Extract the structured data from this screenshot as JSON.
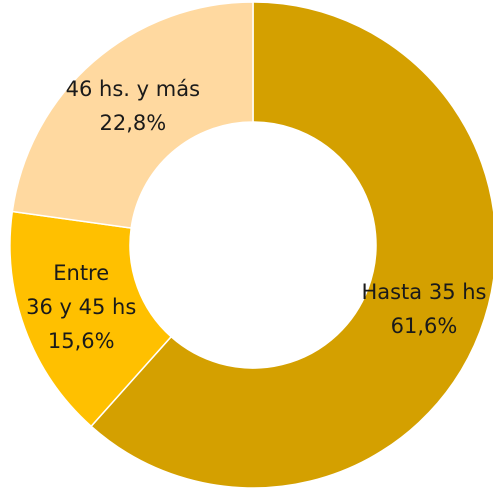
{
  "chart_data": {
    "type": "donut",
    "categories": [
      [
        "Hasta 35 hs"
      ],
      [
        "Entre",
        "36 y 45 hs"
      ],
      [
        "46 hs. y más"
      ]
    ],
    "values": [
      61.6,
      15.6,
      22.8
    ],
    "value_labels": [
      "61,6%",
      "15,6%",
      "22,8%"
    ],
    "colors": [
      "#D4A000",
      "#FFC000",
      "#FFD9A0"
    ]
  }
}
